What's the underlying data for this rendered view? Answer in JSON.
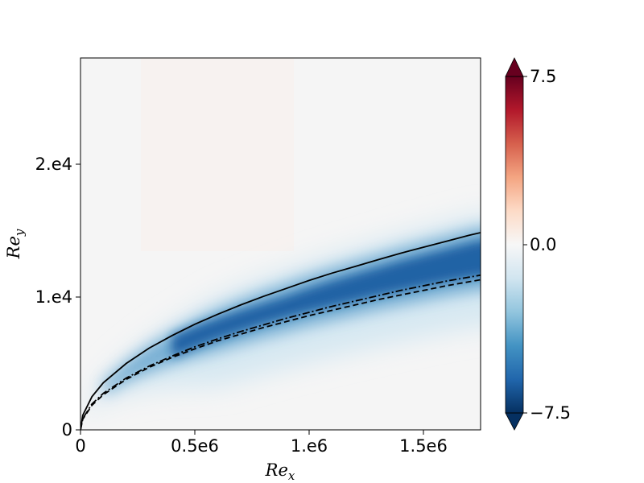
{
  "chart_data": {
    "type": "heatmap",
    "title": "",
    "xlabel": "Re",
    "xlabel_sub": "x",
    "ylabel": "Re",
    "ylabel_sub": "y",
    "xlim": [
      0,
      1750000
    ],
    "ylim": [
      0,
      28000
    ],
    "x_ticks": [
      {
        "value": 0,
        "label": "0"
      },
      {
        "value": 500000,
        "label": "0.5e6"
      },
      {
        "value": 1000000,
        "label": "1.e6"
      },
      {
        "value": 1500000,
        "label": "1.5e6"
      }
    ],
    "y_ticks": [
      {
        "value": 0,
        "label": "0"
      },
      {
        "value": 10000,
        "label": "1.e4"
      },
      {
        "value": 20000,
        "label": "2.e4"
      }
    ],
    "colorbar": {
      "colormap": "RdBu_r",
      "min": -7.5,
      "max": 7.5,
      "extend": "both",
      "ticks": [
        {
          "value": 7.5,
          "label": "7.5"
        },
        {
          "value": 0,
          "label": "0.0"
        },
        {
          "value": -7.5,
          "label": "−7.5"
        }
      ]
    },
    "field_description": "negative band (blue) concentrated between curves, peak about -7 near Re_x 1.0e6",
    "lines": [
      {
        "style": "solid",
        "color": "#000000",
        "x": [
          10000,
          50000,
          100000,
          200000,
          300000,
          400000,
          500000,
          600000,
          700000,
          800000,
          900000,
          1000000,
          1100000,
          1200000,
          1300000,
          1400000,
          1500000,
          1600000,
          1700000,
          1750000
        ],
        "y": [
          1100,
          2500,
          3550,
          5000,
          6150,
          7100,
          7950,
          8700,
          9400,
          10050,
          10650,
          11250,
          11800,
          12300,
          12800,
          13300,
          13750,
          14200,
          14650,
          14850
        ]
      },
      {
        "style": "dashdot",
        "color": "#000000",
        "x": [
          10000,
          50000,
          100000,
          200000,
          300000,
          400000,
          500000,
          600000,
          700000,
          800000,
          900000,
          1000000,
          1100000,
          1200000,
          1300000,
          1400000,
          1500000,
          1600000,
          1700000,
          1750000
        ],
        "y": [
          850,
          1950,
          2750,
          3900,
          4800,
          5550,
          6250,
          6850,
          7400,
          7900,
          8400,
          8850,
          9300,
          9700,
          10100,
          10500,
          10850,
          11200,
          11500,
          11650
        ]
      },
      {
        "style": "dashed",
        "color": "#000000",
        "x": [
          10000,
          50000,
          100000,
          200000,
          300000,
          400000,
          500000,
          600000,
          700000,
          800000,
          900000,
          1000000,
          1100000,
          1200000,
          1300000,
          1400000,
          1500000,
          1600000,
          1700000,
          1750000
        ],
        "y": [
          800,
          1850,
          2650,
          3800,
          4700,
          5450,
          6100,
          6700,
          7200,
          7700,
          8150,
          8600,
          9000,
          9400,
          9800,
          10150,
          10500,
          10850,
          11150,
          11300
        ]
      }
    ]
  }
}
